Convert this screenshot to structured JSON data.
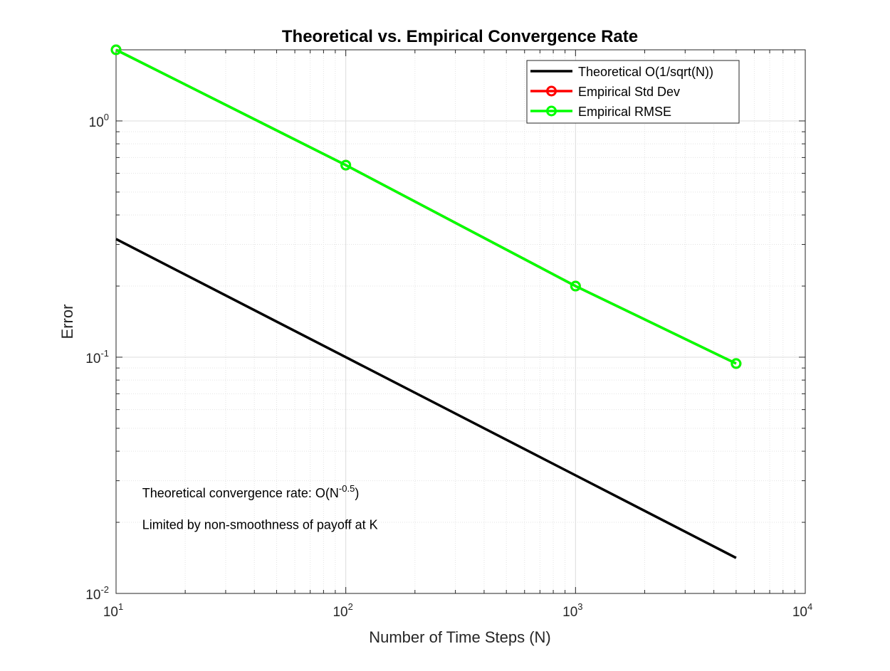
{
  "chart_data": {
    "type": "line",
    "title": "Theoretical vs. Empirical Convergence Rate",
    "xlabel": "Number of Time Steps (N)",
    "ylabel": "Error",
    "xscale": "log",
    "yscale": "log",
    "xlim": [
      10,
      10000
    ],
    "ylim": [
      0.01,
      2
    ],
    "grid": true,
    "minor_grid": true,
    "legend_position": "top-right",
    "x_ticks": [
      {
        "value": 10,
        "base": "10",
        "exp": "1"
      },
      {
        "value": 100,
        "base": "10",
        "exp": "2"
      },
      {
        "value": 1000,
        "base": "10",
        "exp": "3"
      },
      {
        "value": 10000,
        "base": "10",
        "exp": "4"
      }
    ],
    "y_ticks": [
      {
        "value": 0.01,
        "base": "10",
        "exp": "-2"
      },
      {
        "value": 0.1,
        "base": "10",
        "exp": "-1"
      },
      {
        "value": 1,
        "base": "10",
        "exp": "0"
      }
    ],
    "series": [
      {
        "name": "Theoretical O(1/sqrt(N))",
        "color": "#000000",
        "marker": "none",
        "x": [
          10,
          100,
          1000,
          5000
        ],
        "y": [
          0.3162,
          0.1,
          0.03162,
          0.01414
        ]
      },
      {
        "name": "Empirical Std Dev",
        "color": "#ff0000",
        "marker": "circle",
        "x": [
          10,
          100,
          1000,
          5000
        ],
        "y": [
          2.0,
          0.65,
          0.2,
          0.094
        ]
      },
      {
        "name": "Empirical RMSE",
        "color": "#00ff00",
        "marker": "circle",
        "x": [
          10,
          100,
          1000,
          5000
        ],
        "y": [
          2.0,
          0.65,
          0.2,
          0.094
        ]
      }
    ],
    "annotations": [
      {
        "prefix": "Theoretical convergence rate: O(N",
        "sup": "-0.5",
        "suffix": ")",
        "x": 13,
        "y": 0.0255
      },
      {
        "prefix": "Limited by non-smoothness of payoff at K",
        "sup": "",
        "suffix": "",
        "x": 13,
        "y": 0.0187
      }
    ]
  }
}
